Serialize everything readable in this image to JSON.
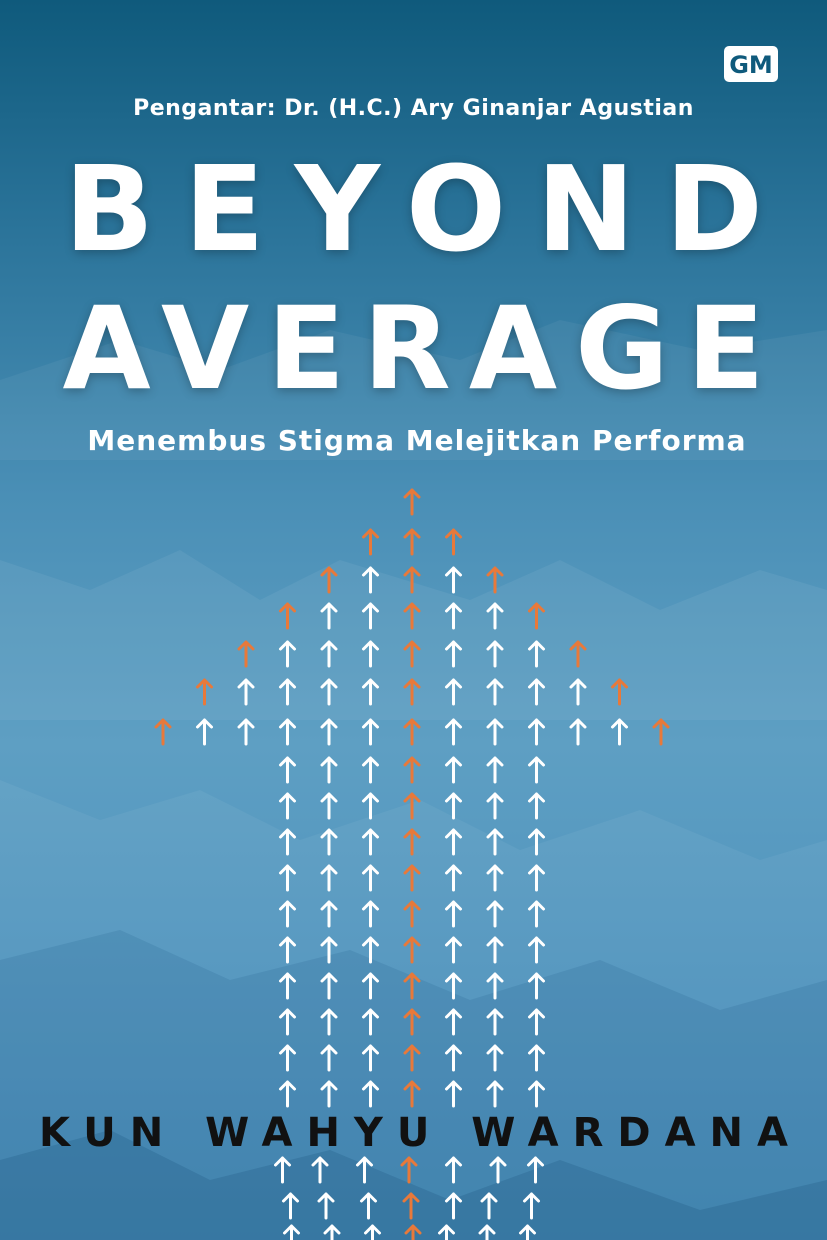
{
  "cover": {
    "publisher_logo_text": "GM",
    "intro": "Pengantar: Dr. (H.C.) Ary Ginanjar Agustian",
    "title_line1": "BEYOND",
    "title_line2": "AVERAGE",
    "subtitle": "Menembus Stigma Melejitkan Performa",
    "author": "KUN WAHYU WARDANA"
  },
  "colors": {
    "accent_orange": "#e8793a",
    "arrow_white": "#ffffff",
    "text_white": "#ffffff",
    "author_text": "#111111"
  },
  "icons": [
    "publisher-logo-icon",
    "up-arrow-icon"
  ]
}
